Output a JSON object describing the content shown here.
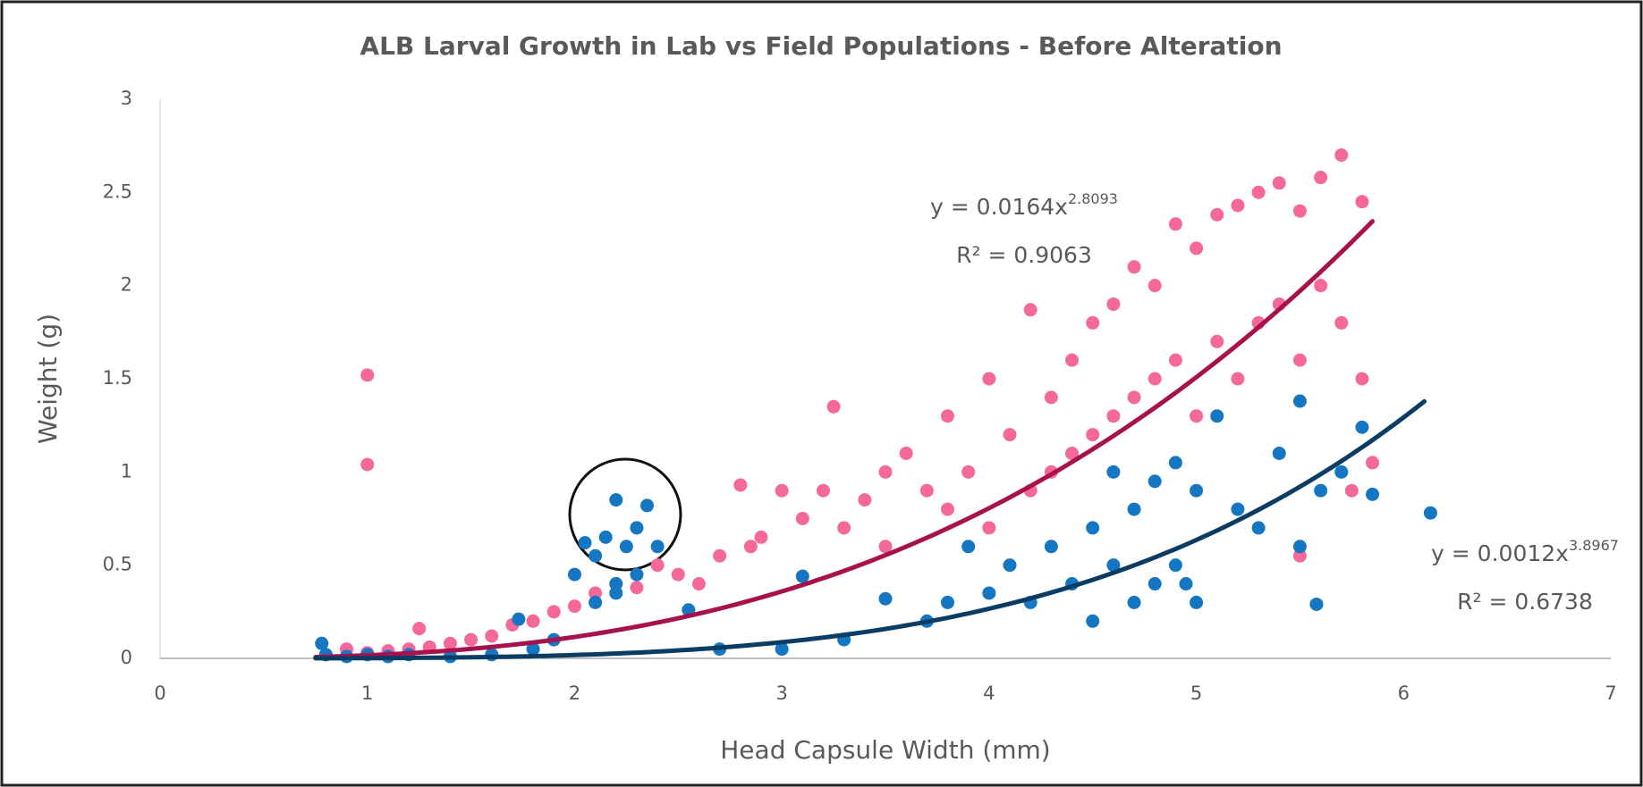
{
  "chart_data": {
    "type": "scatter",
    "title": "ALB Larval Growth in Lab vs Field Populations - Before Alteration",
    "x_label": "Head Capsule Width (mm)",
    "y_label": "Weight (g)",
    "xlim": [
      0,
      7
    ],
    "xticks": [
      0,
      1,
      2,
      3,
      4,
      5,
      6,
      7
    ],
    "ylim": [
      0,
      3
    ],
    "yticks": [
      0,
      0.5,
      1,
      1.5,
      2,
      2.5,
      3
    ],
    "grid": false,
    "series": [
      {
        "color": "#f5689a",
        "x": [
          0.8,
          0.9,
          1.0,
          1.0,
          1.0,
          1.1,
          1.2,
          1.25,
          1.3,
          1.4,
          1.5,
          1.6,
          1.7,
          1.8,
          1.9,
          2.0,
          2.1,
          2.2,
          2.3,
          2.4,
          2.5,
          2.6,
          2.7,
          2.8,
          2.85,
          2.9,
          3.0,
          3.1,
          3.2,
          3.25,
          3.3,
          3.4,
          3.5,
          3.5,
          3.6,
          3.7,
          3.8,
          3.8,
          3.9,
          4.0,
          4.0,
          4.1,
          4.2,
          4.2,
          4.3,
          4.3,
          4.4,
          4.4,
          4.5,
          4.5,
          4.6,
          4.6,
          4.7,
          4.7,
          4.8,
          4.8,
          4.9,
          4.9,
          5.0,
          5.0,
          5.1,
          5.1,
          5.2,
          5.2,
          5.3,
          5.3,
          5.4,
          5.4,
          5.5,
          5.5,
          5.6,
          5.6,
          5.7,
          5.7,
          5.8,
          5.8,
          5.5,
          5.85,
          5.75
        ],
        "values": [
          0.02,
          0.05,
          1.52,
          1.04,
          0.03,
          0.04,
          0.05,
          0.16,
          0.06,
          0.08,
          0.1,
          0.12,
          0.18,
          0.2,
          0.25,
          0.28,
          0.35,
          0.4,
          0.38,
          0.5,
          0.45,
          0.4,
          0.55,
          0.93,
          0.6,
          0.65,
          0.9,
          0.75,
          0.9,
          1.35,
          0.7,
          0.85,
          1.0,
          0.6,
          1.1,
          0.9,
          1.3,
          0.8,
          1.0,
          1.5,
          0.7,
          1.2,
          1.87,
          0.9,
          1.4,
          1.0,
          1.6,
          1.1,
          1.8,
          1.2,
          1.9,
          1.3,
          2.1,
          1.4,
          2.0,
          1.5,
          2.33,
          1.6,
          2.2,
          1.3,
          2.38,
          1.7,
          2.43,
          1.5,
          2.5,
          1.8,
          2.55,
          1.9,
          2.4,
          1.6,
          2.58,
          2.0,
          2.7,
          1.8,
          2.45,
          1.5,
          0.55,
          1.05,
          0.9
        ],
        "trendline": {
          "color": "#a8124c",
          "coef": 0.0164,
          "exp": 2.8093,
          "x_range": [
            0.75,
            5.85
          ],
          "equation": "y = 0.0164x",
          "exponent": "2.8093",
          "r_squared": "R² = 0.9063"
        }
      },
      {
        "color": "#1576c2",
        "x": [
          0.78,
          0.8,
          0.9,
          1.0,
          1.1,
          1.2,
          1.4,
          1.6,
          1.73,
          1.8,
          1.9,
          2.0,
          2.05,
          2.1,
          2.15,
          2.2,
          2.2,
          2.25,
          2.3,
          2.35,
          2.4,
          2.1,
          2.2,
          2.3,
          2.55,
          2.7,
          3.0,
          3.1,
          3.3,
          3.5,
          3.7,
          3.8,
          3.9,
          4.0,
          4.1,
          4.2,
          4.3,
          4.4,
          4.5,
          4.5,
          4.6,
          4.6,
          4.7,
          4.7,
          4.8,
          4.8,
          4.9,
          4.9,
          5.0,
          5.0,
          5.1,
          5.2,
          5.3,
          5.4,
          5.5,
          5.5,
          5.6,
          5.7,
          5.8,
          5.85,
          6.13,
          5.58,
          4.95
        ],
        "values": [
          0.08,
          0.02,
          0.01,
          0.02,
          0.01,
          0.02,
          0.01,
          0.02,
          0.21,
          0.05,
          0.1,
          0.45,
          0.62,
          0.55,
          0.65,
          0.85,
          0.4,
          0.6,
          0.7,
          0.82,
          0.6,
          0.3,
          0.35,
          0.45,
          0.26,
          0.05,
          0.05,
          0.44,
          0.1,
          0.32,
          0.2,
          0.3,
          0.6,
          0.35,
          0.5,
          0.3,
          0.6,
          0.4,
          0.7,
          0.2,
          1.0,
          0.5,
          0.8,
          0.3,
          0.95,
          0.4,
          1.05,
          0.5,
          0.9,
          0.3,
          1.3,
          0.8,
          0.7,
          1.1,
          1.38,
          0.6,
          0.9,
          1.0,
          1.24,
          0.88,
          0.78,
          0.29,
          0.4
        ],
        "trendline": {
          "color": "#0b3c63",
          "coef": 0.0012,
          "exp": 3.8967,
          "x_range": [
            0.75,
            6.1
          ],
          "equation": "y = 0.0012x",
          "exponent": "3.8967",
          "r_squared": "R² = 0.6738"
        }
      }
    ]
  }
}
